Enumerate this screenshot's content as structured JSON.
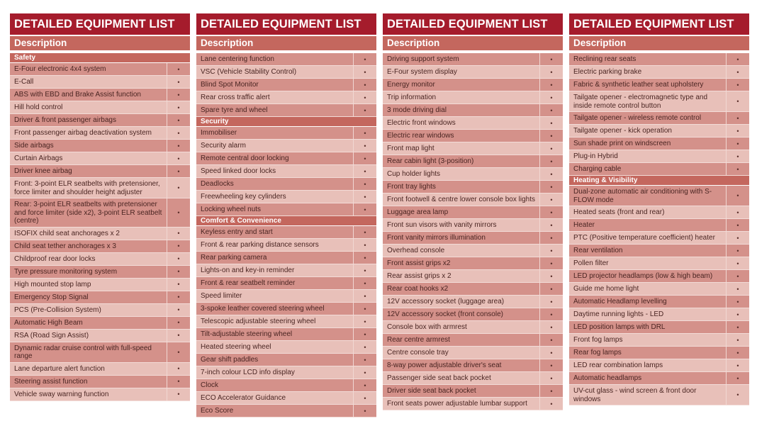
{
  "title": "DETAILED EQUIPMENT LIST",
  "column_header": "Description",
  "marker": "•",
  "colors": {
    "title_bar": "#a51c2c",
    "header_bar": "#c4675e",
    "row_dark": "#d4918a",
    "row_light": "#e8c0b9"
  },
  "columns": [
    {
      "items": [
        {
          "type": "section",
          "label": "Safety"
        },
        {
          "type": "item",
          "label": "E-Four electronic 4x4 system",
          "value": "•"
        },
        {
          "type": "item",
          "label": "E-Call",
          "value": "•"
        },
        {
          "type": "item",
          "label": "ABS with EBD and Brake Assist function",
          "value": "•"
        },
        {
          "type": "item",
          "label": "Hill hold control",
          "value": "•"
        },
        {
          "type": "item",
          "label": "Driver & front passenger airbags",
          "value": "•"
        },
        {
          "type": "item",
          "label": "Front passenger airbag deactivation system",
          "value": "•"
        },
        {
          "type": "item",
          "label": "Side airbags",
          "value": "•"
        },
        {
          "type": "item",
          "label": "Curtain Airbags",
          "value": "•"
        },
        {
          "type": "item",
          "label": "Driver knee airbag",
          "value": "•"
        },
        {
          "type": "item",
          "label": "Front: 3-point ELR seatbelts with pretensioner, force limiter and shoulder height adjuster",
          "value": "•"
        },
        {
          "type": "item",
          "label": "Rear: 3-point ELR seatbelts with pretensioner and force limiter (side x2), 3-point ELR seatbelt (centre)",
          "value": "•"
        },
        {
          "type": "item",
          "label": "ISOFIX child seat anchorages x 2",
          "value": "•"
        },
        {
          "type": "item",
          "label": "Child seat tether anchorages x 3",
          "value": "•"
        },
        {
          "type": "item",
          "label": "Childproof rear door locks",
          "value": "•"
        },
        {
          "type": "item",
          "label": "Tyre pressure monitoring system",
          "value": "•"
        },
        {
          "type": "item",
          "label": "High mounted stop lamp",
          "value": "•"
        },
        {
          "type": "item",
          "label": "Emergency Stop Signal",
          "value": "•"
        },
        {
          "type": "item",
          "label": "PCS (Pre-Collision System)",
          "value": "•"
        },
        {
          "type": "item",
          "label": "Automatic High Beam",
          "value": "•"
        },
        {
          "type": "item",
          "label": "RSA (Road Sign Assist)",
          "value": "•"
        },
        {
          "type": "item",
          "label": "Dynamic radar cruise control with full-speed range",
          "value": "•"
        },
        {
          "type": "item",
          "label": "Lane departure alert function",
          "value": "•"
        },
        {
          "type": "item",
          "label": "Steering assist function",
          "value": "•"
        },
        {
          "type": "item",
          "label": "Vehicle sway warning function",
          "value": "•"
        }
      ]
    },
    {
      "items": [
        {
          "type": "item",
          "label": "Lane centering function",
          "value": "•"
        },
        {
          "type": "item",
          "label": "VSC (Vehicle Stability Control)",
          "value": "•"
        },
        {
          "type": "item",
          "label": "Blind Spot Monitor",
          "value": "•"
        },
        {
          "type": "item",
          "label": "Rear cross traffic alert",
          "value": "•"
        },
        {
          "type": "item",
          "label": "Spare tyre and wheel",
          "value": "•"
        },
        {
          "type": "section",
          "label": "Security"
        },
        {
          "type": "item",
          "label": "Immobiliser",
          "value": "•"
        },
        {
          "type": "item",
          "label": "Security alarm",
          "value": "•"
        },
        {
          "type": "item",
          "label": "Remote central door locking",
          "value": "•"
        },
        {
          "type": "item",
          "label": "Speed linked door locks",
          "value": "•"
        },
        {
          "type": "item",
          "label": "Deadlocks",
          "value": "•"
        },
        {
          "type": "item",
          "label": "Freewheeling key cylinders",
          "value": "•"
        },
        {
          "type": "item",
          "label": "Locking wheel nuts",
          "value": "•"
        },
        {
          "type": "section",
          "label": "Comfort & Convenience"
        },
        {
          "type": "item",
          "label": "Keyless entry and start",
          "value": "•"
        },
        {
          "type": "item",
          "label": "Front & rear parking distance sensors",
          "value": "•"
        },
        {
          "type": "item",
          "label": "Rear parking camera",
          "value": "•"
        },
        {
          "type": "item",
          "label": "Lights-on and key-in reminder",
          "value": "•"
        },
        {
          "type": "item",
          "label": "Front & rear seatbelt reminder",
          "value": "•"
        },
        {
          "type": "item",
          "label": "Speed limiter",
          "value": "•"
        },
        {
          "type": "item",
          "label": "3-spoke leather covered steering wheel",
          "value": "•"
        },
        {
          "type": "item",
          "label": "Telescopic adjustable steering wheel",
          "value": "•"
        },
        {
          "type": "item",
          "label": "Tilt-adjustable steering wheel",
          "value": "•"
        },
        {
          "type": "item",
          "label": "Heated steering wheel",
          "value": "•"
        },
        {
          "type": "item",
          "label": "Gear shift paddles",
          "value": "•"
        },
        {
          "type": "item",
          "label": "7-inch colour LCD info display",
          "value": "•"
        },
        {
          "type": "item",
          "label": "Clock",
          "value": "•"
        },
        {
          "type": "item",
          "label": "ECO Accelerator Guidance",
          "value": "•"
        },
        {
          "type": "item",
          "label": "Eco Score",
          "value": "•"
        }
      ]
    },
    {
      "items": [
        {
          "type": "item",
          "label": "Driving support system",
          "value": "•"
        },
        {
          "type": "item",
          "label": "E-Four system display",
          "value": "•"
        },
        {
          "type": "item",
          "label": "Energy monitor",
          "value": "•"
        },
        {
          "type": "item",
          "label": "Trip information",
          "value": "•"
        },
        {
          "type": "item",
          "label": "3 mode driving dial",
          "value": "•"
        },
        {
          "type": "item",
          "label": "Electric front windows",
          "value": "•"
        },
        {
          "type": "item",
          "label": "Electric rear windows",
          "value": "•"
        },
        {
          "type": "item",
          "label": "Front map light",
          "value": "•"
        },
        {
          "type": "item",
          "label": "Rear cabin light (3-position)",
          "value": "•"
        },
        {
          "type": "item",
          "label": "Cup holder lights",
          "value": "•"
        },
        {
          "type": "item",
          "label": "Front tray lights",
          "value": "•"
        },
        {
          "type": "item",
          "label": "Front footwell & centre lower console box lights",
          "value": "•"
        },
        {
          "type": "item",
          "label": "Luggage area lamp",
          "value": "•"
        },
        {
          "type": "item",
          "label": "Front sun visors with vanity mirrors",
          "value": "•"
        },
        {
          "type": "item",
          "label": "Front vanity mirrors illumination",
          "value": "•"
        },
        {
          "type": "item",
          "label": "Overhead console",
          "value": "•"
        },
        {
          "type": "item",
          "label": "Front assist grips x2",
          "value": "•"
        },
        {
          "type": "item",
          "label": "Rear assist grips x 2",
          "value": "•"
        },
        {
          "type": "item",
          "label": "Rear coat hooks x2",
          "value": "•"
        },
        {
          "type": "item",
          "label": "12V accessory socket (luggage area)",
          "value": "•"
        },
        {
          "type": "item",
          "label": "12V accessory socket (front console)",
          "value": "•"
        },
        {
          "type": "item",
          "label": "Console box with armrest",
          "value": "•"
        },
        {
          "type": "item",
          "label": "Rear centre armrest",
          "value": "•"
        },
        {
          "type": "item",
          "label": "Centre console tray",
          "value": "•"
        },
        {
          "type": "item",
          "label": "8-way power adjustable driver's seat",
          "value": "•"
        },
        {
          "type": "item",
          "label": "Passenger side seat back pocket",
          "value": "•"
        },
        {
          "type": "item",
          "label": "Driver side seat back pocket",
          "value": "•"
        },
        {
          "type": "item",
          "label": "Front seats power adjustable lumbar support",
          "value": "•"
        }
      ]
    },
    {
      "items": [
        {
          "type": "item",
          "label": "Reclining rear seats",
          "value": "•"
        },
        {
          "type": "item",
          "label": "Electric parking brake",
          "value": "•"
        },
        {
          "type": "item",
          "label": "Fabric & synthetic leather seat upholstery",
          "value": "•"
        },
        {
          "type": "item",
          "label": "Tailgate opener - electromagnetic type and inside remote control button",
          "value": "•"
        },
        {
          "type": "item",
          "label": "Tailgate opener - wireless remote control",
          "value": "•"
        },
        {
          "type": "item",
          "label": "Tailgate opener - kick operation",
          "value": "•"
        },
        {
          "type": "item",
          "label": "Sun shade print on windscreen",
          "value": "•"
        },
        {
          "type": "item",
          "label": "Plug-in Hybrid",
          "value": "•"
        },
        {
          "type": "item",
          "label": "Charging cable",
          "value": "•"
        },
        {
          "type": "section",
          "label": "Heating & Visibility"
        },
        {
          "type": "item",
          "label": "Dual-zone automatic air conditioning with S-FLOW mode",
          "value": "•"
        },
        {
          "type": "item",
          "label": "Heated seats (front and rear)",
          "value": "•"
        },
        {
          "type": "item",
          "label": "Heater",
          "value": "•"
        },
        {
          "type": "item",
          "label": "PTC (Positive temperature coefficient) heater",
          "value": "•"
        },
        {
          "type": "item",
          "label": "Rear ventilation",
          "value": "•"
        },
        {
          "type": "item",
          "label": "Pollen filter",
          "value": "•"
        },
        {
          "type": "item",
          "label": "LED projector headlamps (low & high beam)",
          "value": "•"
        },
        {
          "type": "item",
          "label": "Guide me home light",
          "value": "•"
        },
        {
          "type": "item",
          "label": "Automatic Headlamp levelling",
          "value": "•"
        },
        {
          "type": "item",
          "label": "Daytime running lights - LED",
          "value": "•"
        },
        {
          "type": "item",
          "label": "LED position lamps with DRL",
          "value": "•"
        },
        {
          "type": "item",
          "label": "Front fog lamps",
          "value": "•"
        },
        {
          "type": "item",
          "label": "Rear fog lamps",
          "value": "•"
        },
        {
          "type": "item",
          "label": "LED rear combination lamps",
          "value": "•"
        },
        {
          "type": "item",
          "label": "Automatic headlamps",
          "value": "•"
        },
        {
          "type": "item",
          "label": "UV-cut glass - wind screen & front door windows",
          "value": "•"
        }
      ]
    }
  ]
}
